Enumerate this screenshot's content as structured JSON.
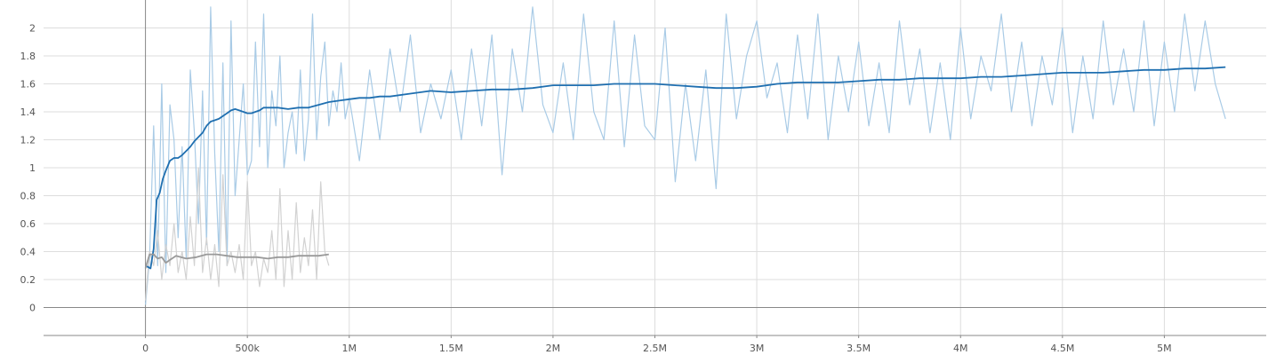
{
  "chart_data": {
    "type": "line",
    "title": "",
    "xlabel": "",
    "ylabel": "",
    "xlim": [
      -500000,
      5500000
    ],
    "ylim": [
      -0.2,
      2.2
    ],
    "grid": true,
    "x_ticks": [
      0,
      500000,
      1000000,
      1500000,
      2000000,
      2500000,
      3000000,
      3500000,
      4000000,
      4500000,
      5000000
    ],
    "x_tick_labels": [
      "0",
      "500k",
      "1M",
      "1.5M",
      "2M",
      "2.5M",
      "3M",
      "3.5M",
      "4M",
      "4.5M",
      "5M"
    ],
    "y_ticks": [
      0,
      0.2,
      0.4,
      0.6,
      0.8,
      1,
      1.2,
      1.4,
      1.6,
      1.8,
      2
    ],
    "y_tick_labels": [
      "0",
      "0.2",
      "0.4",
      "0.6",
      "0.8",
      "1",
      "1.2",
      "1.4",
      "1.6",
      "1.8",
      "2"
    ],
    "colors": {
      "blue_smoothed": "#1f6fb0",
      "blue_raw": "#a9cbe6",
      "gray_smoothed": "#9a9a9a",
      "gray_raw": "#d2d2d2"
    },
    "series": [
      {
        "color_key": "blue",
        "smoothed": {
          "x": [
            0,
            25000,
            40000,
            55000,
            70000,
            85000,
            100000,
            120000,
            140000,
            160000,
            180000,
            200000,
            220000,
            240000,
            260000,
            280000,
            300000,
            320000,
            340000,
            360000,
            380000,
            400000,
            420000,
            440000,
            460000,
            480000,
            500000,
            520000,
            540000,
            560000,
            580000,
            600000,
            650000,
            700000,
            750000,
            800000,
            850000,
            900000,
            950000,
            1000000,
            1050000,
            1100000,
            1150000,
            1200000,
            1300000,
            1400000,
            1500000,
            1600000,
            1700000,
            1800000,
            1900000,
            2000000,
            2100000,
            2200000,
            2300000,
            2400000,
            2500000,
            2600000,
            2700000,
            2800000,
            2900000,
            3000000,
            3100000,
            3200000,
            3300000,
            3400000,
            3500000,
            3600000,
            3700000,
            3800000,
            3900000,
            4000000,
            4100000,
            4200000,
            4300000,
            4400000,
            4500000,
            4600000,
            4700000,
            4800000,
            4900000,
            5000000,
            5100000,
            5200000,
            5300000
          ],
          "y": [
            0.3,
            0.28,
            0.42,
            0.77,
            0.82,
            0.92,
            0.98,
            1.05,
            1.07,
            1.07,
            1.09,
            1.12,
            1.15,
            1.19,
            1.22,
            1.25,
            1.3,
            1.33,
            1.34,
            1.35,
            1.37,
            1.39,
            1.41,
            1.42,
            1.41,
            1.4,
            1.39,
            1.39,
            1.4,
            1.41,
            1.43,
            1.43,
            1.43,
            1.42,
            1.43,
            1.43,
            1.45,
            1.47,
            1.48,
            1.49,
            1.5,
            1.5,
            1.51,
            1.51,
            1.53,
            1.55,
            1.54,
            1.55,
            1.56,
            1.56,
            1.57,
            1.59,
            1.59,
            1.59,
            1.6,
            1.6,
            1.6,
            1.59,
            1.58,
            1.57,
            1.57,
            1.58,
            1.6,
            1.61,
            1.61,
            1.61,
            1.62,
            1.63,
            1.63,
            1.64,
            1.64,
            1.64,
            1.65,
            1.65,
            1.66,
            1.67,
            1.68,
            1.68,
            1.68,
            1.69,
            1.7,
            1.7,
            1.71,
            1.71,
            1.72
          ]
        },
        "raw": {
          "x": [
            0,
            20000,
            40000,
            60000,
            80000,
            100000,
            120000,
            140000,
            160000,
            180000,
            200000,
            220000,
            240000,
            260000,
            280000,
            300000,
            320000,
            340000,
            360000,
            380000,
            400000,
            420000,
            440000,
            460000,
            480000,
            500000,
            520000,
            540000,
            560000,
            580000,
            600000,
            620000,
            640000,
            660000,
            680000,
            700000,
            720000,
            740000,
            760000,
            780000,
            800000,
            820000,
            840000,
            860000,
            880000,
            900000,
            920000,
            940000,
            960000,
            980000,
            1000000,
            1050000,
            1100000,
            1150000,
            1200000,
            1250000,
            1300000,
            1350000,
            1400000,
            1450000,
            1500000,
            1550000,
            1600000,
            1650000,
            1700000,
            1750000,
            1800000,
            1850000,
            1900000,
            1950000,
            2000000,
            2050000,
            2100000,
            2150000,
            2200000,
            2250000,
            2300000,
            2350000,
            2400000,
            2450000,
            2500000,
            2550000,
            2600000,
            2650000,
            2700000,
            2750000,
            2800000,
            2850000,
            2900000,
            2950000,
            3000000,
            3050000,
            3100000,
            3150000,
            3200000,
            3250000,
            3300000,
            3350000,
            3400000,
            3450000,
            3500000,
            3550000,
            3600000,
            3650000,
            3700000,
            3750000,
            3800000,
            3850000,
            3900000,
            3950000,
            4000000,
            4050000,
            4100000,
            4150000,
            4200000,
            4250000,
            4300000,
            4350000,
            4400000,
            4450000,
            4500000,
            4550000,
            4600000,
            4650000,
            4700000,
            4750000,
            4800000,
            4850000,
            4900000,
            4950000,
            5000000,
            5050000,
            5100000,
            5150000,
            5200000,
            5250000,
            5300000
          ],
          "y": [
            0.02,
            0.35,
            1.3,
            0.3,
            1.6,
            0.25,
            1.45,
            1.2,
            0.5,
            1.15,
            0.35,
            1.7,
            1.25,
            0.6,
            1.55,
            0.45,
            2.15,
            1.1,
            0.4,
            1.75,
            0.3,
            2.05,
            0.8,
            1.2,
            1.6,
            0.95,
            1.05,
            1.9,
            1.15,
            2.1,
            1.0,
            1.55,
            1.3,
            1.8,
            1.0,
            1.25,
            1.4,
            1.1,
            1.7,
            1.05,
            1.35,
            2.1,
            1.2,
            1.65,
            1.9,
            1.3,
            1.55,
            1.4,
            1.75,
            1.35,
            1.5,
            1.05,
            1.7,
            1.2,
            1.85,
            1.4,
            1.95,
            1.25,
            1.6,
            1.35,
            1.7,
            1.2,
            1.85,
            1.3,
            1.95,
            0.95,
            1.85,
            1.4,
            2.15,
            1.45,
            1.25,
            1.75,
            1.2,
            2.1,
            1.4,
            1.2,
            2.05,
            1.15,
            1.95,
            1.3,
            1.2,
            2.0,
            0.9,
            1.6,
            1.05,
            1.7,
            0.85,
            2.1,
            1.35,
            1.8,
            2.05,
            1.5,
            1.75,
            1.25,
            1.95,
            1.35,
            2.1,
            1.2,
            1.8,
            1.4,
            1.9,
            1.3,
            1.75,
            1.25,
            2.05,
            1.45,
            1.85,
            1.25,
            1.75,
            1.2,
            2.0,
            1.35,
            1.8,
            1.55,
            2.1,
            1.4,
            1.9,
            1.3,
            1.8,
            1.45,
            2.0,
            1.25,
            1.8,
            1.35,
            2.05,
            1.45,
            1.85,
            1.4,
            2.05,
            1.3,
            1.9,
            1.4,
            2.1,
            1.55,
            2.05,
            1.6,
            1.35
          ]
        }
      },
      {
        "color_key": "gray",
        "smoothed": {
          "x": [
            0,
            20000,
            40000,
            60000,
            80000,
            100000,
            120000,
            150000,
            200000,
            250000,
            300000,
            350000,
            400000,
            450000,
            500000,
            550000,
            600000,
            650000,
            700000,
            750000,
            800000,
            850000,
            900000
          ],
          "y": [
            0.28,
            0.38,
            0.38,
            0.35,
            0.36,
            0.32,
            0.34,
            0.37,
            0.35,
            0.36,
            0.38,
            0.38,
            0.37,
            0.36,
            0.36,
            0.36,
            0.35,
            0.36,
            0.36,
            0.37,
            0.37,
            0.37,
            0.38
          ]
        },
        "raw": {
          "x": [
            0,
            20000,
            40000,
            60000,
            80000,
            100000,
            120000,
            140000,
            160000,
            180000,
            200000,
            220000,
            240000,
            260000,
            280000,
            300000,
            320000,
            340000,
            360000,
            380000,
            400000,
            420000,
            440000,
            460000,
            480000,
            500000,
            520000,
            540000,
            560000,
            580000,
            600000,
            620000,
            640000,
            660000,
            680000,
            700000,
            720000,
            740000,
            760000,
            780000,
            800000,
            820000,
            840000,
            860000,
            880000,
            900000
          ],
          "y": [
            0.05,
            0.4,
            0.3,
            0.55,
            0.2,
            0.45,
            0.3,
            0.6,
            0.25,
            0.4,
            0.2,
            0.65,
            0.3,
            1.0,
            0.25,
            0.5,
            0.2,
            0.45,
            0.15,
            0.95,
            0.3,
            0.4,
            0.25,
            0.45,
            0.2,
            0.9,
            0.3,
            0.4,
            0.15,
            0.35,
            0.25,
            0.55,
            0.2,
            0.85,
            0.15,
            0.55,
            0.2,
            0.75,
            0.25,
            0.5,
            0.3,
            0.7,
            0.2,
            0.9,
            0.4,
            0.3
          ]
        }
      }
    ]
  }
}
